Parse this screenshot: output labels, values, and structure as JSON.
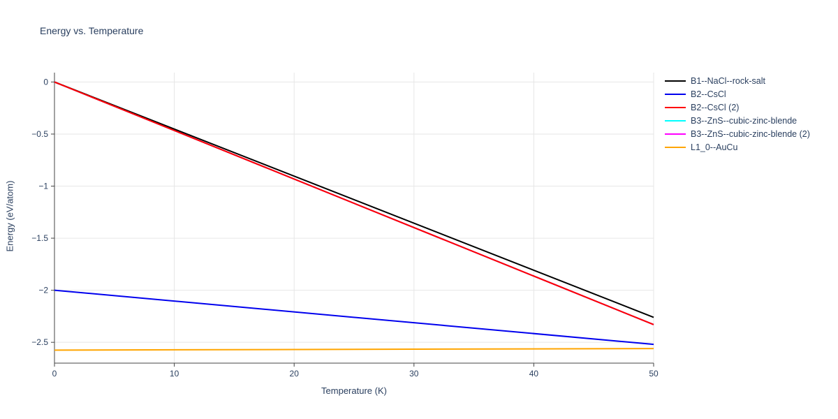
{
  "chart_data": {
    "type": "line",
    "title": "Energy vs. Temperature",
    "xlabel": "Temperature (K)",
    "ylabel": "Energy (eV/atom)",
    "xlim": [
      0,
      50
    ],
    "ylim": [
      -2.7,
      0.09
    ],
    "xticks": [
      0,
      10,
      20,
      30,
      40,
      50
    ],
    "yticks": [
      0,
      -0.5,
      -1,
      -1.5,
      -2,
      -2.5
    ],
    "grid": true,
    "legend_position": "top-right-outside",
    "x": [
      0,
      50
    ],
    "series": [
      {
        "name": "B1--NaCl--rock-salt",
        "color": "#000000",
        "values": [
          0,
          -2.26
        ]
      },
      {
        "name": "B2--CsCl",
        "color": "#0000ee",
        "values": [
          -2.0,
          -2.52
        ]
      },
      {
        "name": "B2--CsCl (2)",
        "color": "#ff0000",
        "values": [
          0,
          -2.33
        ]
      },
      {
        "name": "B3--ZnS--cubic-zinc-blende",
        "color": "#00ffff",
        "values": [
          0,
          -2.33
        ]
      },
      {
        "name": "B3--ZnS--cubic-zinc-blende (2)",
        "color": "#ff00ff",
        "values": [
          0,
          -2.33
        ]
      },
      {
        "name": "L1_0--AuCu",
        "color": "#ffa500",
        "values": [
          -2.575,
          -2.56
        ]
      }
    ],
    "colors": {
      "grid": "#e6e6e6",
      "axis": "#444444",
      "text": "#2a3f5f"
    }
  }
}
